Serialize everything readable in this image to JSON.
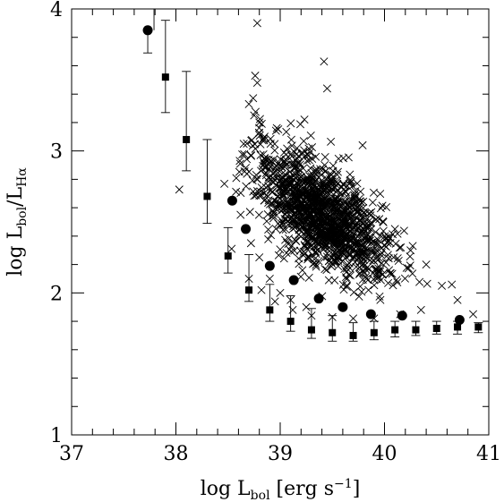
{
  "chart_data": {
    "type": "scatter",
    "title": "",
    "xlabel": "log L",
    "xlabel_sub": "bol",
    "xlabel_unit": "[erg s",
    "xlabel_unit_sup": "−1",
    "xlabel_unit_end": "]",
    "ylabel": "log L",
    "ylabel_sub": "bol",
    "ylabel_mid": "/L",
    "ylabel_sub2": "Hα",
    "xlim": [
      37,
      41
    ],
    "ylim": [
      1,
      4
    ],
    "xticks": [
      37,
      38,
      39,
      40,
      41
    ],
    "yticks": [
      1,
      2,
      3,
      4
    ],
    "xtick_labels": [
      "37",
      "38",
      "39",
      "40",
      "41"
    ],
    "ytick_labels": [
      "1",
      "2",
      "3",
      "4"
    ],
    "grid": false,
    "series": [
      {
        "marker": "circle",
        "x": [
          37.73,
          38.54,
          38.67,
          38.9,
          39.13,
          39.37,
          39.6,
          39.87,
          40.17,
          40.72
        ],
        "y": [
          3.85,
          2.65,
          2.45,
          2.19,
          2.09,
          1.96,
          1.9,
          1.85,
          1.84,
          1.81
        ]
      },
      {
        "marker": "square",
        "x": [
          37.9,
          38.1,
          38.3,
          38.5,
          38.7,
          38.9,
          39.1,
          39.3,
          39.5,
          39.7,
          39.9,
          40.1,
          40.3,
          40.5,
          40.7,
          40.9
        ],
        "y": [
          3.52,
          3.08,
          2.68,
          2.26,
          2.02,
          1.88,
          1.8,
          1.74,
          1.72,
          1.7,
          1.72,
          1.74,
          1.74,
          1.75,
          1.76,
          1.76
        ],
        "err_low": [
          3.27,
          2.86,
          2.49,
          2.14,
          1.94,
          1.8,
          1.73,
          1.68,
          1.66,
          1.66,
          1.67,
          1.69,
          1.7,
          1.71,
          1.71,
          1.72
        ],
        "err_high": [
          3.92,
          3.56,
          3.08,
          2.46,
          2.27,
          2.06,
          1.98,
          1.89,
          1.84,
          1.79,
          1.8,
          1.8,
          1.8,
          1.8,
          1.8,
          1.79
        ]
      },
      {
        "marker": "cross",
        "cloud": {
          "n": 1400,
          "center_x": 39.4,
          "center_y": 2.55,
          "spread_x": 0.32,
          "spread_y": 0.18,
          "slope": -0.45
        },
        "x": [
          38.78,
          38.76,
          38.78,
          39.42,
          39.45,
          38.7,
          38.75,
          38.8,
          38.85,
          39.79,
          38.65,
          38.72,
          38.85,
          38.95,
          39.05,
          39.2,
          39.35,
          39.55,
          39.75,
          39.95,
          40.1,
          40.25,
          40.4,
          40.55,
          40.7,
          40.85,
          38.62,
          38.72,
          38.8,
          38.9,
          39.0,
          39.1,
          39.25,
          38.7,
          38.82,
          38.95,
          39.12,
          39.3,
          39.5,
          39.7,
          39.9,
          40.15,
          40.35
        ],
        "y": [
          3.9,
          3.53,
          3.48,
          3.63,
          3.44,
          3.33,
          3.25,
          3.2,
          3.1,
          3.04,
          3.05,
          2.97,
          2.95,
          2.85,
          2.8,
          2.75,
          2.7,
          2.63,
          2.57,
          2.52,
          2.45,
          2.3,
          2.2,
          2.05,
          1.95,
          1.85,
          2.55,
          2.35,
          2.25,
          2.1,
          2.0,
          1.95,
          1.9,
          2.1,
          2.02,
          1.94,
          1.88,
          1.84,
          1.83,
          1.82,
          1.82,
          1.85,
          1.88
        ]
      }
    ]
  }
}
